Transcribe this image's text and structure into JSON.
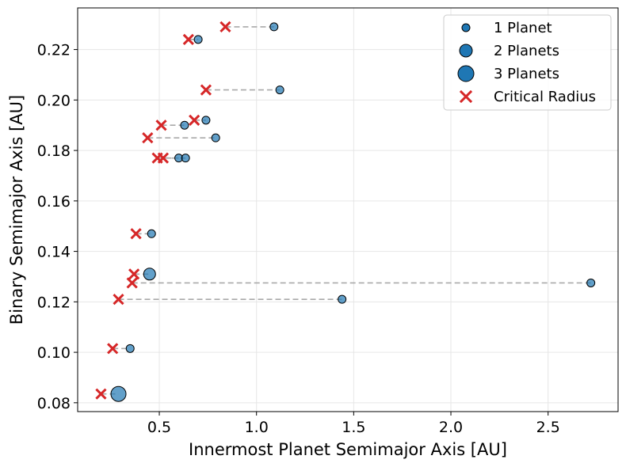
{
  "chart_data": {
    "type": "scatter",
    "title": "",
    "xlabel": "Innermost Planet Semimajor Axis [AU]",
    "ylabel": "Binary Semimajor Axis [AU]",
    "xlim": [
      0.08,
      2.86
    ],
    "ylim": [
      0.0765,
      0.2365
    ],
    "xticks": [
      0.5,
      1.0,
      1.5,
      2.0,
      2.5
    ],
    "xtick_labels": [
      "0.5",
      "1.0",
      "1.5",
      "2.0",
      "2.5"
    ],
    "yticks": [
      0.08,
      0.1,
      0.12,
      0.14,
      0.16,
      0.18,
      0.2,
      0.22
    ],
    "ytick_labels": [
      "0.08",
      "0.10",
      "0.12",
      "0.14",
      "0.16",
      "0.18",
      "0.20",
      "0.22"
    ],
    "grid": true,
    "legend_position": "top-right",
    "legend": [
      {
        "label": "1 Planet",
        "kind": "planet-1"
      },
      {
        "label": "2 Planets",
        "kind": "planet-2"
      },
      {
        "label": "3 Planets",
        "kind": "planet-3"
      },
      {
        "label": "Critical Radius",
        "kind": "critical"
      }
    ],
    "systems": [
      {
        "binary_a": 0.229,
        "planet_a": 1.09,
        "critical_radius": 0.84,
        "n_planets": 1
      },
      {
        "binary_a": 0.224,
        "planet_a": 0.7,
        "critical_radius": 0.65,
        "n_planets": 1
      },
      {
        "binary_a": 0.204,
        "planet_a": 1.12,
        "critical_radius": 0.74,
        "n_planets": 1
      },
      {
        "binary_a": 0.192,
        "planet_a": 0.74,
        "critical_radius": 0.68,
        "n_planets": 1
      },
      {
        "binary_a": 0.19,
        "planet_a": 0.63,
        "critical_radius": 0.51,
        "n_planets": 1
      },
      {
        "binary_a": 0.185,
        "planet_a": 0.79,
        "critical_radius": 0.44,
        "n_planets": 1
      },
      {
        "binary_a": 0.177,
        "planet_a": 0.6,
        "critical_radius": 0.49,
        "n_planets": 1
      },
      {
        "binary_a": 0.177,
        "planet_a": 0.635,
        "critical_radius": 0.52,
        "n_planets": 1
      },
      {
        "binary_a": 0.147,
        "planet_a": 0.46,
        "critical_radius": 0.38,
        "n_planets": 1
      },
      {
        "binary_a": 0.131,
        "planet_a": 0.45,
        "critical_radius": 0.37,
        "n_planets": 2
      },
      {
        "binary_a": 0.1275,
        "planet_a": 2.72,
        "critical_radius": 0.36,
        "n_planets": 1
      },
      {
        "binary_a": 0.121,
        "planet_a": 1.44,
        "critical_radius": 0.29,
        "n_planets": 1
      },
      {
        "binary_a": 0.1015,
        "planet_a": 0.35,
        "critical_radius": 0.26,
        "n_planets": 1
      },
      {
        "binary_a": 0.0835,
        "planet_a": 0.29,
        "critical_radius": 0.2,
        "n_planets": 3
      }
    ],
    "colors": {
      "planet_fill": "#1f77b4",
      "critical": "#d62728",
      "connector": "#a9a9a9",
      "grid": "#e6e6e6"
    }
  }
}
